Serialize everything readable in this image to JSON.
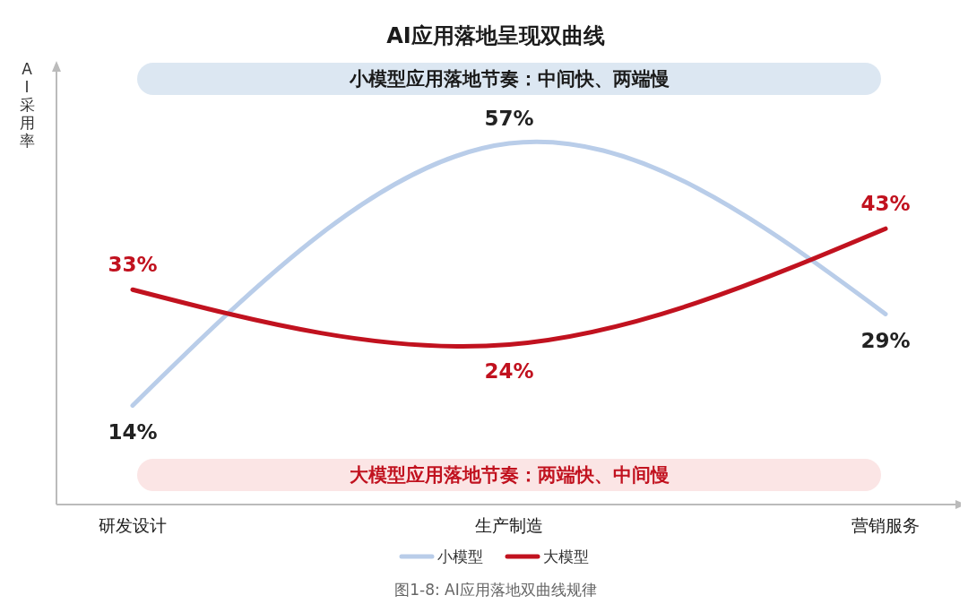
{
  "chart_data": {
    "type": "line",
    "title": "AI应用落地呈现双曲线",
    "ylabel": "AI采用率",
    "categories": [
      "研发设计",
      "生产制造",
      "营销服务"
    ],
    "series": [
      {
        "name": "小模型",
        "color": "#b9cde9",
        "values": [
          14,
          57,
          29
        ],
        "value_labels": [
          "14%",
          "57%",
          "29%"
        ]
      },
      {
        "name": "大模型",
        "color": "#c1121f",
        "values": [
          33,
          24,
          43
        ],
        "value_labels": [
          "33%",
          "24%",
          "43%"
        ]
      }
    ],
    "legend": "bottom",
    "marker": "none",
    "annotations": [
      "小模型应用落地节奏：中间快、两端慢",
      "大模型应用落地节奏：两端快、中间慢",
      "图1-8: AI应用落地双曲线规律"
    ]
  }
}
